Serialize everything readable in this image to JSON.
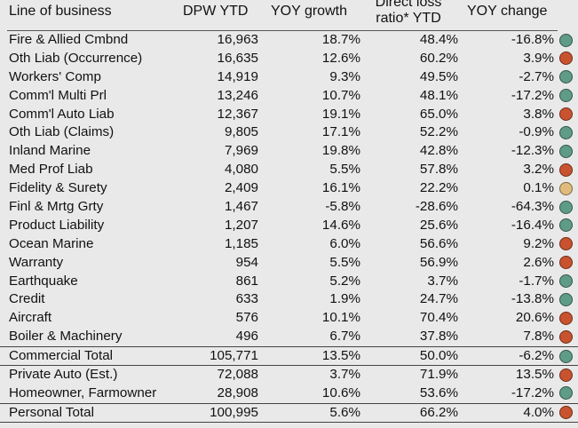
{
  "header": {
    "line_of_business": "Line of business",
    "dpw_ytd": "DPW YTD",
    "yoy_growth": "YOY growth",
    "direct_loss_line1": "Direct loss",
    "direct_loss_line2": "ratio* YTD",
    "yoy_change": "YOY change"
  },
  "status_colors": {
    "green": "#5f9c87",
    "red": "#c9532f",
    "amber": "#e0bc7c"
  },
  "rows": [
    {
      "name": "Fire & Allied Cmbnd",
      "dpw": "16,963",
      "yoy": "18.7%",
      "dlr": "48.4%",
      "chg": "-16.8%",
      "status": "green"
    },
    {
      "name": "Oth Liab (Occurrence)",
      "dpw": "16,635",
      "yoy": "12.6%",
      "dlr": "60.2%",
      "chg": "3.9%",
      "status": "red"
    },
    {
      "name": "Workers' Comp",
      "dpw": "14,919",
      "yoy": "9.3%",
      "dlr": "49.5%",
      "chg": "-2.7%",
      "status": "green"
    },
    {
      "name": "Comm'l Multi Prl",
      "dpw": "13,246",
      "yoy": "10.7%",
      "dlr": "48.1%",
      "chg": "-17.2%",
      "status": "green"
    },
    {
      "name": "Comm'l Auto Liab",
      "dpw": "12,367",
      "yoy": "19.1%",
      "dlr": "65.0%",
      "chg": "3.8%",
      "status": "red"
    },
    {
      "name": "Oth Liab (Claims)",
      "dpw": "9,805",
      "yoy": "17.1%",
      "dlr": "52.2%",
      "chg": "-0.9%",
      "status": "green"
    },
    {
      "name": "Inland Marine",
      "dpw": "7,969",
      "yoy": "19.8%",
      "dlr": "42.8%",
      "chg": "-12.3%",
      "status": "green"
    },
    {
      "name": "Med Prof Liab",
      "dpw": "4,080",
      "yoy": "5.5%",
      "dlr": "57.8%",
      "chg": "3.2%",
      "status": "red"
    },
    {
      "name": "Fidelity & Surety",
      "dpw": "2,409",
      "yoy": "16.1%",
      "dlr": "22.2%",
      "chg": "0.1%",
      "status": "amber"
    },
    {
      "name": "Finl & Mrtg Grty",
      "dpw": "1,467",
      "yoy": "-5.8%",
      "dlr": "-28.6%",
      "chg": "-64.3%",
      "status": "green"
    },
    {
      "name": "Product Liability",
      "dpw": "1,207",
      "yoy": "14.6%",
      "dlr": "25.6%",
      "chg": "-16.4%",
      "status": "green"
    },
    {
      "name": "Ocean Marine",
      "dpw": "1,185",
      "yoy": "6.0%",
      "dlr": "56.6%",
      "chg": "9.2%",
      "status": "red"
    },
    {
      "name": "Warranty",
      "dpw": "954",
      "yoy": "5.5%",
      "dlr": "56.9%",
      "chg": "2.6%",
      "status": "red"
    },
    {
      "name": "Earthquake",
      "dpw": "861",
      "yoy": "5.2%",
      "dlr": "3.7%",
      "chg": "-1.7%",
      "status": "green"
    },
    {
      "name": "Credit",
      "dpw": "633",
      "yoy": "1.9%",
      "dlr": "24.7%",
      "chg": "-13.8%",
      "status": "green"
    },
    {
      "name": "Aircraft",
      "dpw": "576",
      "yoy": "10.1%",
      "dlr": "70.4%",
      "chg": "20.6%",
      "status": "red"
    },
    {
      "name": "Boiler & Machinery",
      "dpw": "496",
      "yoy": "6.7%",
      "dlr": "37.8%",
      "chg": "7.8%",
      "status": "red"
    },
    {
      "name": "Commercial Total",
      "dpw": "105,771",
      "yoy": "13.5%",
      "dlr": "50.0%",
      "chg": "-6.2%",
      "status": "green",
      "total": true
    },
    {
      "name": "Private Auto (Est.)",
      "dpw": "72,088",
      "yoy": "3.7%",
      "dlr": "71.9%",
      "chg": "13.5%",
      "status": "red"
    },
    {
      "name": "Homeowner, Farmowner",
      "dpw": "28,908",
      "yoy": "10.6%",
      "dlr": "53.6%",
      "chg": "-17.2%",
      "status": "green"
    },
    {
      "name": "Personal Total",
      "dpw": "100,995",
      "yoy": "5.6%",
      "dlr": "66.2%",
      "chg": "4.0%",
      "status": "red",
      "total": true
    }
  ]
}
